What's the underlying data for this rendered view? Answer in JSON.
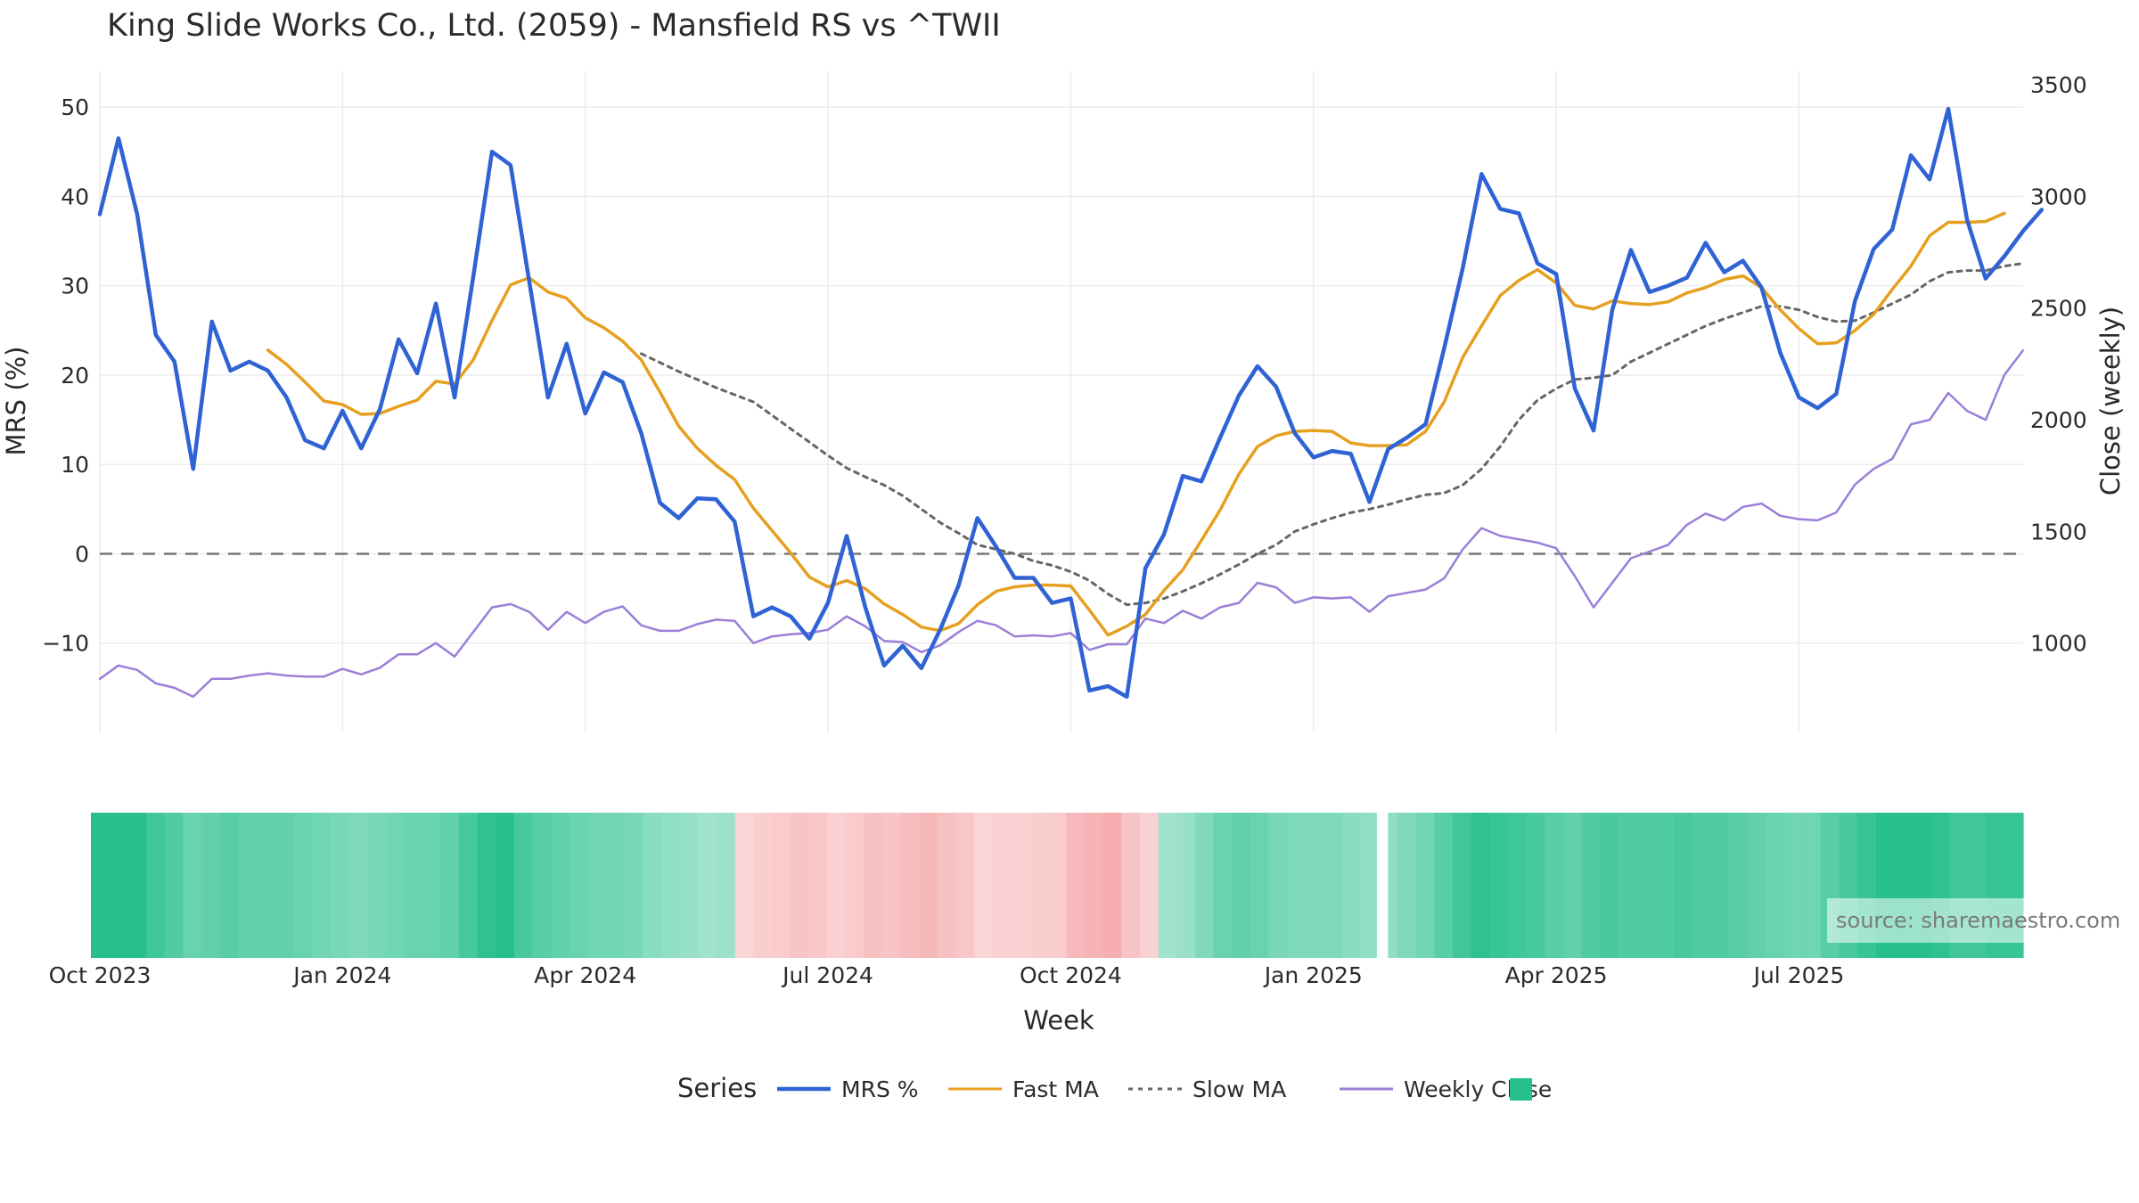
{
  "chart_data": {
    "type": "line",
    "title": "King Slide Works Co., Ltd. (2059) - Mansfield RS vs ^TWII",
    "xlabel": "Week",
    "ylabel_left": "MRS (%)",
    "ylabel_right": "Close (weekly)",
    "ylim_left": [
      -20,
      54
    ],
    "ylim_right": [
      600,
      3560
    ],
    "left_ticks": [
      50,
      40,
      30,
      20,
      10,
      0,
      -10
    ],
    "right_ticks": [
      3500,
      3000,
      2500,
      2000,
      1500,
      1000
    ],
    "x_tick_labels": [
      "Oct 2023",
      "Jan 2024",
      "Apr 2024",
      "Jul 2024",
      "Oct 2024",
      "Jan 2025",
      "Apr 2025",
      "Jul 2025"
    ],
    "x_tick_weeks": [
      0,
      13,
      26,
      39,
      52,
      65,
      78,
      91
    ],
    "zero_line": 0,
    "legend_title": "Series",
    "series": [
      {
        "name": "MRS %",
        "color": "#2f62d4",
        "style": "solid",
        "axis": "left",
        "start_week": 0,
        "values": [
          38,
          46.5,
          38,
          24.5,
          21.5,
          9.5,
          26,
          20.5,
          21.5,
          20.5,
          17.5,
          12.7,
          11.8,
          16,
          11.8,
          16.2,
          24,
          20.2,
          28,
          17.5,
          31,
          45,
          43.5,
          30.5,
          17.5,
          23.5,
          15.7,
          20.3,
          19.2,
          13.5,
          5.7,
          4,
          6.2,
          6.1,
          3.6,
          -7,
          -6,
          -7,
          -9.5,
          -5.5,
          2,
          -6,
          -12.5,
          -10.3,
          -12.8,
          -8.5,
          -3.5,
          4,
          0.8,
          -2.7,
          -2.7,
          -5.5,
          -5,
          -15.3,
          -14.8,
          -16,
          -1.6,
          2.2,
          8.7,
          8.1,
          13,
          17.7,
          21,
          18.7,
          13.5,
          10.8,
          11.5,
          11.2,
          5.8,
          11.7,
          13,
          14.5,
          23,
          32,
          42.5,
          38.6,
          38.1,
          32.5,
          31.3,
          18.5,
          13.8,
          27.3,
          34,
          29.3,
          30,
          30.9,
          34.8,
          31.5,
          32.8,
          29.8,
          22.5,
          17.5,
          16.3,
          17.9,
          28.3,
          34.1,
          36.3,
          44.6,
          41.9,
          49.8,
          37.4,
          30.8,
          33.3,
          36.1,
          38.5
        ]
      },
      {
        "name": "Fast MA",
        "color": "#e6a020",
        "style": "solid",
        "axis": "left",
        "start_week": 9,
        "values": [
          22.8,
          21.2,
          19.2,
          17.1,
          16.7,
          15.6,
          15.7,
          16.5,
          17.2,
          19.3,
          19.0,
          21.7,
          26.1,
          30.1,
          30.9,
          29.3,
          28.6,
          26.4,
          25.3,
          23.8,
          21.7,
          18.1,
          14.3,
          11.8,
          9.9,
          8.3,
          5.1,
          2.6,
          0.1,
          -2.6,
          -3.7,
          -3.0,
          -3.9,
          -5.6,
          -6.8,
          -8.2,
          -8.6,
          -7.8,
          -5.7,
          -4.2,
          -3.7,
          -3.5,
          -3.5,
          -3.6,
          -6.3,
          -9.1,
          -8.1,
          -6.8,
          -4.1,
          -1.8,
          1.5,
          4.9,
          8.9,
          12.0,
          13.2,
          13.7,
          13.8,
          13.7,
          12.4,
          12.1,
          12.1,
          12.2,
          13.7,
          17.0,
          22.0,
          25.5,
          28.9,
          30.6,
          31.8,
          30.3,
          27.8,
          27.4,
          28.3,
          28.0,
          27.9,
          28.2,
          29.2,
          29.8,
          30.7,
          31.1,
          29.8,
          27.3,
          25.2,
          23.5,
          23.6,
          25.0,
          26.8,
          29.6,
          32.2,
          35.6,
          37.1,
          37.1,
          37.2,
          38.1
        ]
      },
      {
        "name": "Slow MA",
        "color": "#666666",
        "style": "dotted",
        "axis": "left",
        "start_week": 29,
        "values": [
          22.4,
          21.4,
          20.4,
          19.5,
          18.6,
          17.8,
          17.0,
          15.5,
          14.0,
          12.5,
          11.0,
          9.6,
          8.6,
          7.7,
          6.5,
          5.0,
          3.5,
          2.3,
          1.0,
          0.5,
          0,
          -0.8,
          -1.3,
          -2.0,
          -3.0,
          -4.5,
          -5.7,
          -5.5,
          -5.0,
          -4.2,
          -3.3,
          -2.3,
          -1.2,
          0,
          1.0,
          2.5,
          3.3,
          4.0,
          4.6,
          5.0,
          5.5,
          6.1,
          6.6,
          6.8,
          7.7,
          9.5,
          12,
          15,
          17.2,
          18.5,
          19.5,
          19.7,
          20,
          21.5,
          22.5,
          23.5,
          24.5,
          25.5,
          26.3,
          27.0,
          27.7,
          27.7,
          27.3,
          26.5,
          26,
          26.1,
          27,
          28,
          29,
          30.5,
          31.5,
          31.7,
          31.7,
          32.2,
          32.5
        ]
      },
      {
        "name": "Weekly Close",
        "color": "#9b7fd8",
        "style": "solid",
        "axis": "right",
        "start_week": 0,
        "values": [
          840,
          900,
          880,
          820,
          800,
          760,
          840,
          840,
          855,
          865,
          855,
          850,
          850,
          885,
          860,
          890,
          950,
          950,
          1000,
          940,
          1050,
          1160,
          1175,
          1140,
          1060,
          1140,
          1090,
          1140,
          1165,
          1080,
          1055,
          1055,
          1085,
          1105,
          1100,
          1000,
          1030,
          1040,
          1045,
          1060,
          1120,
          1075,
          1010,
          1005,
          960,
          990,
          1050,
          1100,
          1080,
          1030,
          1035,
          1030,
          1045,
          970,
          995,
          995,
          1110,
          1090,
          1145,
          1110,
          1160,
          1180,
          1270,
          1250,
          1180,
          1205,
          1200,
          1205,
          1140,
          1210,
          1225,
          1240,
          1290,
          1420,
          1515,
          1480,
          1465,
          1450,
          1425,
          1300,
          1160,
          1270,
          1380,
          1410,
          1440,
          1530,
          1580,
          1550,
          1610,
          1625,
          1570,
          1555,
          1550,
          1585,
          1710,
          1780,
          1825,
          1980,
          2000,
          2120,
          2040,
          2000,
          2200,
          2310
        ]
      }
    ],
    "strength_strip": {
      "green": "#27c08a",
      "red": "#f4a6a8",
      "gap_after_week": 70,
      "values": [
        1.0,
        1.0,
        1.0,
        0.85,
        0.75,
        0.6,
        0.65,
        0.7,
        0.65,
        0.65,
        0.65,
        0.6,
        0.55,
        0.5,
        0.45,
        0.5,
        0.55,
        0.6,
        0.6,
        0.65,
        0.8,
        0.95,
        1.0,
        0.8,
        0.7,
        0.65,
        0.6,
        0.55,
        0.55,
        0.5,
        0.4,
        0.35,
        0.3,
        0.25,
        0.28,
        -0.3,
        -0.4,
        -0.45,
        -0.55,
        -0.5,
        -0.35,
        -0.45,
        -0.6,
        -0.55,
        -0.65,
        -0.75,
        -0.6,
        -0.5,
        -0.3,
        -0.35,
        -0.35,
        -0.4,
        -0.45,
        -0.7,
        -0.8,
        -0.9,
        -0.55,
        -0.35,
        0.25,
        0.3,
        0.45,
        0.6,
        0.65,
        0.6,
        0.5,
        0.45,
        0.45,
        0.45,
        0.4,
        0.35,
        0.35,
        0.45,
        0.55,
        0.7,
        0.85,
        0.95,
        0.9,
        0.85,
        0.8,
        0.7,
        0.65,
        0.75,
        0.8,
        0.75,
        0.75,
        0.75,
        0.8,
        0.75,
        0.75,
        0.7,
        0.65,
        0.6,
        0.55,
        0.55,
        0.7,
        0.8,
        0.9,
        1.0,
        1.0,
        1.0,
        0.95,
        0.85,
        0.85,
        0.9,
        0.9
      ]
    }
  },
  "legend": {
    "title": "Series",
    "items": [
      {
        "label": "MRS %",
        "color": "#2f62d4",
        "style": "solid"
      },
      {
        "label": "Fast MA",
        "color": "#e6a020",
        "style": "solid"
      },
      {
        "label": "Slow MA",
        "color": "#666666",
        "style": "dotted"
      },
      {
        "label": "Weekly Close",
        "color": "#9b7fd8",
        "style": "solid"
      }
    ],
    "swatch_color": "#27c08a"
  },
  "source": "source: sharemaestro.com"
}
